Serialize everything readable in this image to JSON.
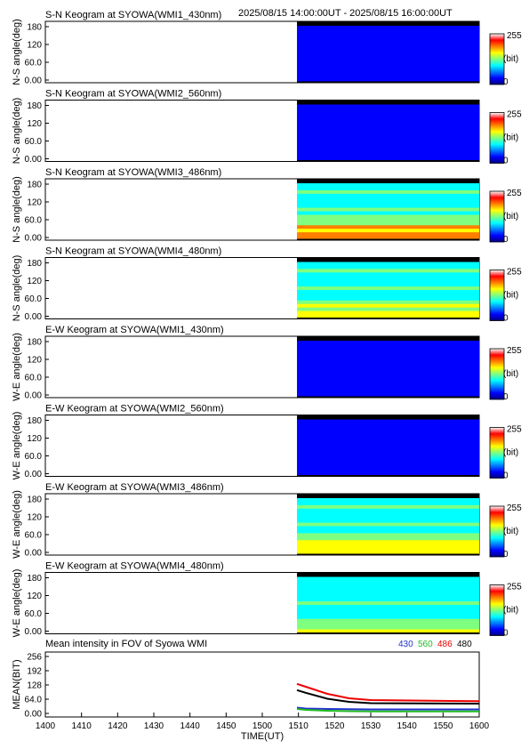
{
  "header": {
    "time_range": "2025/08/15 14:00:00UT - 2025/08/15 16:00:00UT"
  },
  "colors": {
    "background": "#ffffff",
    "colormap": [
      "#00007f",
      "#0000ff",
      "#007fff",
      "#00ffff",
      "#7fff7f",
      "#ffff00",
      "#ff7f00",
      "#ff0000",
      "#ffffff"
    ],
    "line_430": "#2233cc",
    "line_560": "#22bb22",
    "line_486": "#ee0000",
    "line_480": "#000000"
  },
  "colorbar": {
    "max_label": "255",
    "unit_label": "(bit)",
    "min_label": "0"
  },
  "panels": [
    {
      "title": "S-N Keogram at SYOWA(WMI1_430nm)",
      "ylabel": "N-S angle(deg)",
      "yticks": [
        "180",
        "120",
        "60.0",
        "0.00"
      ],
      "data_start_min": 1516,
      "data_end_min": 1600,
      "level": 0.12,
      "low_glow": 0.0,
      "stripe": 0.05
    },
    {
      "title": "S-N Keogram at SYOWA(WMI2_560nm)",
      "ylabel": "N-S angle(deg)",
      "yticks": [
        "180",
        "120",
        "60.0",
        "0.00"
      ],
      "data_start_min": 1516,
      "data_end_min": 1600,
      "level": 0.1,
      "low_glow": 0.0,
      "stripe": 0.08
    },
    {
      "title": "S-N Keogram at SYOWA(WMI3_486nm)",
      "ylabel": "N-S angle(deg)",
      "yticks": [
        "180",
        "120",
        "60.0",
        "0.00"
      ],
      "data_start_min": 1516,
      "data_end_min": 1600,
      "level": 0.42,
      "low_glow": 0.45,
      "stripe": 0.15
    },
    {
      "title": "S-N Keogram at SYOWA(WMI4_480nm)",
      "ylabel": "N-S angle(deg)",
      "yticks": [
        "180",
        "120",
        "60.0",
        "0.00"
      ],
      "data_start_min": 1516,
      "data_end_min": 1600,
      "level": 0.36,
      "low_glow": 0.4,
      "stripe": 0.15
    },
    {
      "title": "E-W Keogram at SYOWA(WMI1_430nm)",
      "ylabel": "W-E angle(deg)",
      "yticks": [
        "180",
        "120",
        "60.0",
        "0.00"
      ],
      "data_start_min": 1516,
      "data_end_min": 1600,
      "level": 0.12,
      "low_glow": 0.08,
      "stripe": 0.03
    },
    {
      "title": "E-W Keogram at SYOWA(WMI2_560nm)",
      "ylabel": "W-E angle(deg)",
      "yticks": [
        "180",
        "120",
        "60.0",
        "0.00"
      ],
      "data_start_min": 1516,
      "data_end_min": 1600,
      "level": 0.1,
      "low_glow": 0.05,
      "stripe": 0.02
    },
    {
      "title": "E-W Keogram at SYOWA(WMI3_486nm)",
      "ylabel": "W-E angle(deg)",
      "yticks": [
        "180",
        "120",
        "60.0",
        "0.00"
      ],
      "data_start_min": 1516,
      "data_end_min": 1600,
      "level": 0.42,
      "low_glow": 0.35,
      "stripe": 0.1
    },
    {
      "title": "E-W Keogram at SYOWA(WMI4_480nm)",
      "ylabel": "W-E angle(deg)",
      "yticks": [
        "180",
        "120",
        "60.0",
        "0.00"
      ],
      "data_start_min": 1516,
      "data_end_min": 1600,
      "level": 0.38,
      "low_glow": 0.3,
      "stripe": 0.1
    }
  ],
  "chart_data": {
    "type": "line",
    "title": "Mean intensity in FOV of Syowa WMI",
    "xlabel": "TIME(UT)",
    "ylabel": "MEAN(BIT)",
    "xlim": [
      1400,
      1600
    ],
    "ylim": [
      0,
      256
    ],
    "x_ticks": [
      "1400",
      "1410",
      "1420",
      "1430",
      "1440",
      "1450",
      "1500",
      "1510",
      "1520",
      "1530",
      "1540",
      "1550",
      "1600"
    ],
    "y_ticks": [
      "256",
      "192",
      "128",
      "64.0",
      "0.00"
    ],
    "grid": false,
    "legend_position": "top-right",
    "series": [
      {
        "name": "430",
        "color": "#2233cc",
        "x": [
          1516,
          1520,
          1530,
          1540,
          1550,
          1600
        ],
        "values": [
          26,
          22,
          20,
          19,
          18,
          18
        ]
      },
      {
        "name": "560",
        "color": "#22bb22",
        "x": [
          1516,
          1520,
          1530,
          1540,
          1550,
          1600
        ],
        "values": [
          20,
          16,
          12,
          10,
          9,
          9
        ]
      },
      {
        "name": "486",
        "color": "#ee0000",
        "x": [
          1516,
          1520,
          1530,
          1540,
          1550,
          1600
        ],
        "values": [
          133,
          120,
          88,
          68,
          60,
          55
        ]
      },
      {
        "name": "480",
        "color": "#000000",
        "x": [
          1516,
          1520,
          1530,
          1540,
          1550,
          1600
        ],
        "values": [
          105,
          93,
          66,
          52,
          46,
          44
        ]
      }
    ]
  }
}
